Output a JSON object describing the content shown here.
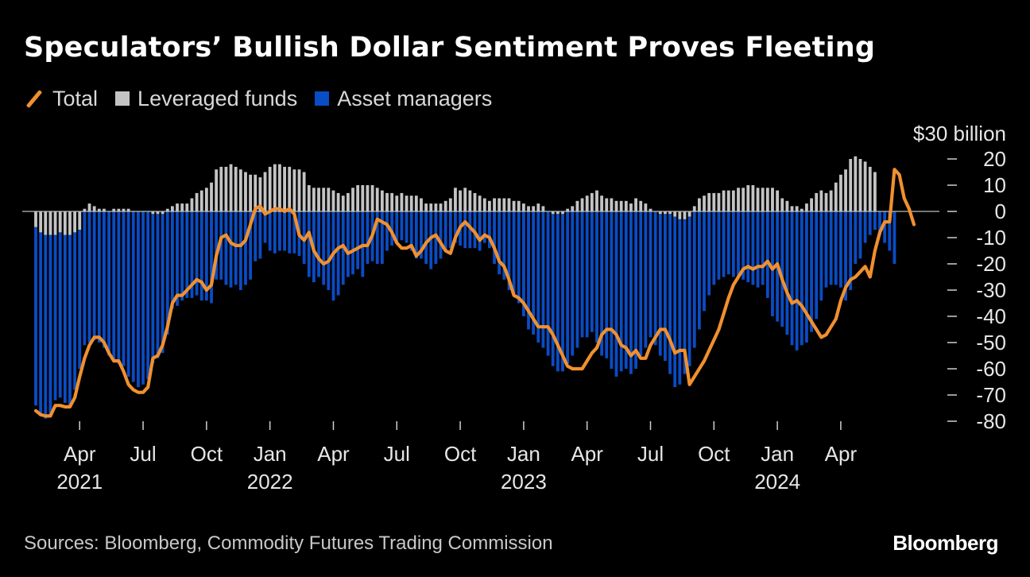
{
  "title": "Speculators’ Bullish Dollar Sentiment Proves Fleeting",
  "legend": [
    {
      "label": "Total",
      "color": "#f0902f"
    },
    {
      "label": "Leveraged funds",
      "color": "#c4c4c4"
    },
    {
      "label": "Asset managers",
      "color": "#0a4cc4"
    }
  ],
  "source": "Sources: Bloomberg, Commodity Futures Trading Commission",
  "logo": "Bloomberg",
  "chart_data": {
    "type": "bar",
    "unit_label": "$30 billion",
    "ylim": [
      -80,
      30
    ],
    "yticks": [
      20,
      10,
      0,
      -10,
      -20,
      -30,
      -40,
      -50,
      -60,
      -70,
      -80
    ],
    "xticks": [
      {
        "month": "Apr",
        "year": "2021",
        "week": 9
      },
      {
        "month": "Jul",
        "year": "",
        "week": 22
      },
      {
        "month": "Oct",
        "year": "",
        "week": 35
      },
      {
        "month": "Jan",
        "year": "2022",
        "week": 48
      },
      {
        "month": "Apr",
        "year": "",
        "week": 61
      },
      {
        "month": "Jul",
        "year": "",
        "week": 74
      },
      {
        "month": "Oct",
        "year": "",
        "week": 87
      },
      {
        "month": "Jan",
        "year": "2023",
        "week": 100
      },
      {
        "month": "Apr",
        "year": "",
        "week": 113
      },
      {
        "month": "Jul",
        "year": "",
        "week": 126
      },
      {
        "month": "Oct",
        "year": "",
        "week": 139
      },
      {
        "month": "Jan",
        "year": "2024",
        "week": 152
      },
      {
        "month": "Apr",
        "year": "",
        "week": 165
      }
    ],
    "series": [
      {
        "name": "Leveraged funds",
        "values": [
          -6,
          -8,
          -9,
          -9,
          -9,
          -8,
          -9,
          -9,
          -8,
          -7,
          1,
          3,
          2,
          1,
          1,
          0,
          1,
          1,
          1,
          1,
          0,
          0,
          0,
          0,
          -1,
          -1,
          -1,
          1,
          2,
          3,
          3,
          3,
          5,
          7,
          8,
          9,
          11,
          16,
          17,
          17,
          18,
          17,
          16,
          15,
          14,
          14,
          13,
          15,
          17,
          18,
          18,
          17,
          17,
          16,
          16,
          15,
          10,
          9,
          9,
          9,
          9,
          8,
          7,
          6,
          7,
          9,
          10,
          10,
          10,
          10,
          9,
          8,
          7,
          7,
          6,
          7,
          6,
          6,
          6,
          5,
          3,
          3,
          3,
          3,
          4,
          5,
          9,
          8,
          9,
          8,
          7,
          6,
          5,
          4,
          5,
          5,
          5,
          5,
          4,
          4,
          3,
          2,
          2,
          3,
          2,
          0,
          -1,
          -1,
          -1,
          1,
          2,
          4,
          5,
          6,
          7,
          8,
          6,
          5,
          5,
          4,
          4,
          4,
          3,
          5,
          4,
          3,
          1,
          0,
          -1,
          -1,
          -1,
          -2,
          -3,
          -3,
          -2,
          2,
          5,
          6,
          7,
          7,
          7,
          8,
          8,
          8,
          9,
          9,
          10,
          10,
          9,
          9,
          9,
          9,
          8,
          5,
          4,
          2,
          2,
          1,
          3,
          5,
          7,
          8,
          7,
          8,
          11,
          14,
          16,
          20,
          21,
          20,
          19,
          17,
          15
        ]
      },
      {
        "name": "Asset managers",
        "values": [
          -68,
          -70,
          -70,
          -69,
          -63,
          -63,
          -64,
          -65,
          -60,
          -53,
          -51,
          -50,
          -49,
          -50,
          -52,
          -55,
          -57,
          -58,
          -59,
          -63,
          -65,
          -67,
          -66,
          -64,
          -57,
          -55,
          -53,
          -47,
          -37,
          -36,
          -34,
          -33,
          -33,
          -32,
          -34,
          -34,
          -35,
          -26,
          -26,
          -28,
          -29,
          -28,
          -30,
          -28,
          -26,
          -19,
          -18,
          -12,
          -15,
          -16,
          -15,
          -15,
          -16,
          -16,
          -17,
          -20,
          -25,
          -27,
          -25,
          -28,
          -30,
          -34,
          -32,
          -28,
          -25,
          -24,
          -22,
          -25,
          -20,
          -19,
          -20,
          -20,
          -15,
          -13,
          -12,
          -11,
          -12,
          -15,
          -18,
          -18,
          -20,
          -22,
          -20,
          -18,
          -15,
          -14,
          -12,
          -13,
          -14,
          -14,
          -14,
          -15,
          -12,
          -14,
          -20,
          -24,
          -26,
          -30,
          -32,
          -35,
          -40,
          -45,
          -47,
          -50,
          -52,
          -55,
          -58,
          -60,
          -60,
          -58,
          -55,
          -52,
          -48,
          -48,
          -46,
          -50,
          -55,
          -56,
          -60,
          -63,
          -61,
          -60,
          -62,
          -60,
          -55,
          -52,
          -48,
          -51,
          -54,
          -56,
          -61,
          -65,
          -63,
          -59,
          -57,
          -52,
          -45,
          -38,
          -32,
          -28,
          -26,
          -25,
          -24,
          -25,
          -25,
          -26,
          -27,
          -28,
          -29,
          -28,
          -33,
          -40,
          -42,
          -44,
          -47,
          -51,
          -53,
          -51,
          -50,
          -46,
          -41,
          -34,
          -29,
          -28,
          -28,
          -29,
          -34,
          -30,
          -20,
          -18,
          -12,
          -9,
          -7,
          -9,
          -12,
          -15,
          -20
        ]
      },
      {
        "name": "Total",
        "values": [
          -76,
          -77.5,
          -78,
          -78,
          -74,
          -74,
          -74.5,
          -74.5,
          -71,
          -63,
          -56,
          -51,
          -48,
          -48,
          -50,
          -54,
          -57,
          -57,
          -61,
          -66,
          -68,
          -69,
          -69,
          -67,
          -56,
          -55,
          -51,
          -44,
          -35,
          -32,
          -32,
          -30,
          -28,
          -26,
          -27,
          -30,
          -28,
          -17,
          -10,
          -9,
          -12,
          -13,
          -13,
          -11,
          -5,
          1,
          2,
          -1,
          0,
          1,
          1,
          0,
          1,
          -1,
          -9,
          -11,
          -8,
          -15,
          -18,
          -20,
          -19,
          -16,
          -14,
          -13,
          -16,
          -15,
          -14,
          -13,
          -13,
          -9,
          -3,
          -4,
          -5,
          -8,
          -12,
          -14,
          -14,
          -13,
          -17,
          -15,
          -12,
          -10,
          -9,
          -12,
          -15,
          -16,
          -10,
          -6,
          -4,
          -6,
          -8,
          -11,
          -9,
          -10,
          -14,
          -19,
          -21,
          -26,
          -32,
          -33,
          -35,
          -38,
          -41,
          -44,
          -44,
          -44,
          -47,
          -51,
          -55,
          -59,
          -60,
          -60,
          -60,
          -57,
          -54,
          -52,
          -47,
          -45,
          -45,
          -47,
          -51,
          -52,
          -55,
          -53,
          -56,
          -56,
          -51,
          -48,
          -45,
          -45,
          -49,
          -54,
          -53,
          -53,
          -66,
          -63,
          -60,
          -57,
          -53,
          -49,
          -45,
          -39,
          -33,
          -28,
          -25,
          -22,
          -21,
          -22,
          -21,
          -21,
          -19,
          -22,
          -20,
          -26,
          -31,
          -35,
          -34,
          -36,
          -39,
          -42,
          -45,
          -48,
          -47,
          -44,
          -41,
          -34,
          -29,
          -26,
          -25,
          -23,
          -21,
          -25,
          -15,
          -8,
          -4,
          -4,
          16,
          14,
          5,
          1,
          -5
        ]
      }
    ]
  }
}
